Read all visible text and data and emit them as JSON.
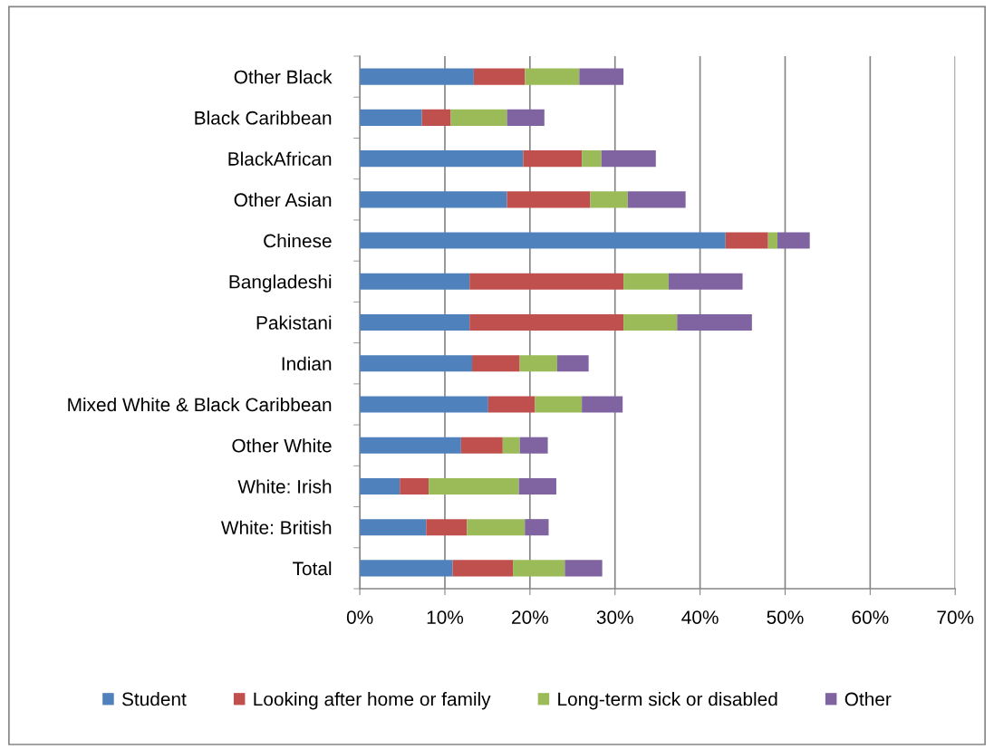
{
  "chart_data": {
    "type": "bar",
    "orientation": "horizontal",
    "stacked": true,
    "categories": [
      "Other Black",
      "Black Caribbean",
      "BlackAfrican",
      "Other Asian",
      "Chinese",
      "Bangladeshi",
      "Pakistani",
      "Indian",
      "Mixed White & Black Caribbean",
      "Other White",
      "White: Irish",
      "White: British",
      "Total"
    ],
    "series": [
      {
        "name": "Student",
        "color": "#4f81bd",
        "values": [
          13.4,
          7.3,
          19.2,
          17.3,
          43.0,
          12.9,
          12.9,
          13.2,
          15.1,
          11.9,
          4.7,
          7.8,
          10.9
        ]
      },
      {
        "name": "Looking after home or family",
        "color": "#c0504d",
        "values": [
          6.0,
          3.4,
          6.9,
          9.8,
          5.0,
          18.1,
          18.1,
          5.6,
          5.5,
          4.9,
          3.4,
          4.8,
          7.1
        ]
      },
      {
        "name": "Long-term sick or disabled",
        "color": "#9bbb59",
        "values": [
          6.4,
          6.6,
          2.3,
          4.4,
          1.1,
          5.3,
          6.3,
          4.4,
          5.5,
          2.0,
          10.6,
          6.8,
          6.1
        ]
      },
      {
        "name": "Other",
        "color": "#8064a2",
        "values": [
          5.2,
          4.4,
          6.4,
          6.8,
          3.8,
          8.7,
          8.8,
          3.7,
          4.8,
          3.3,
          4.4,
          2.8,
          4.4
        ]
      }
    ],
    "xlim": [
      0,
      70
    ],
    "xticks": [
      {
        "value": 0,
        "label": "0%"
      },
      {
        "value": 10,
        "label": "10%"
      },
      {
        "value": 20,
        "label": "20%"
      },
      {
        "value": 30,
        "label": "30%"
      },
      {
        "value": 40,
        "label": "40%"
      },
      {
        "value": 50,
        "label": "50%"
      },
      {
        "value": 60,
        "label": "60%"
      },
      {
        "value": 70,
        "label": "70%"
      }
    ],
    "grid": "x",
    "legend": "bottom"
  }
}
